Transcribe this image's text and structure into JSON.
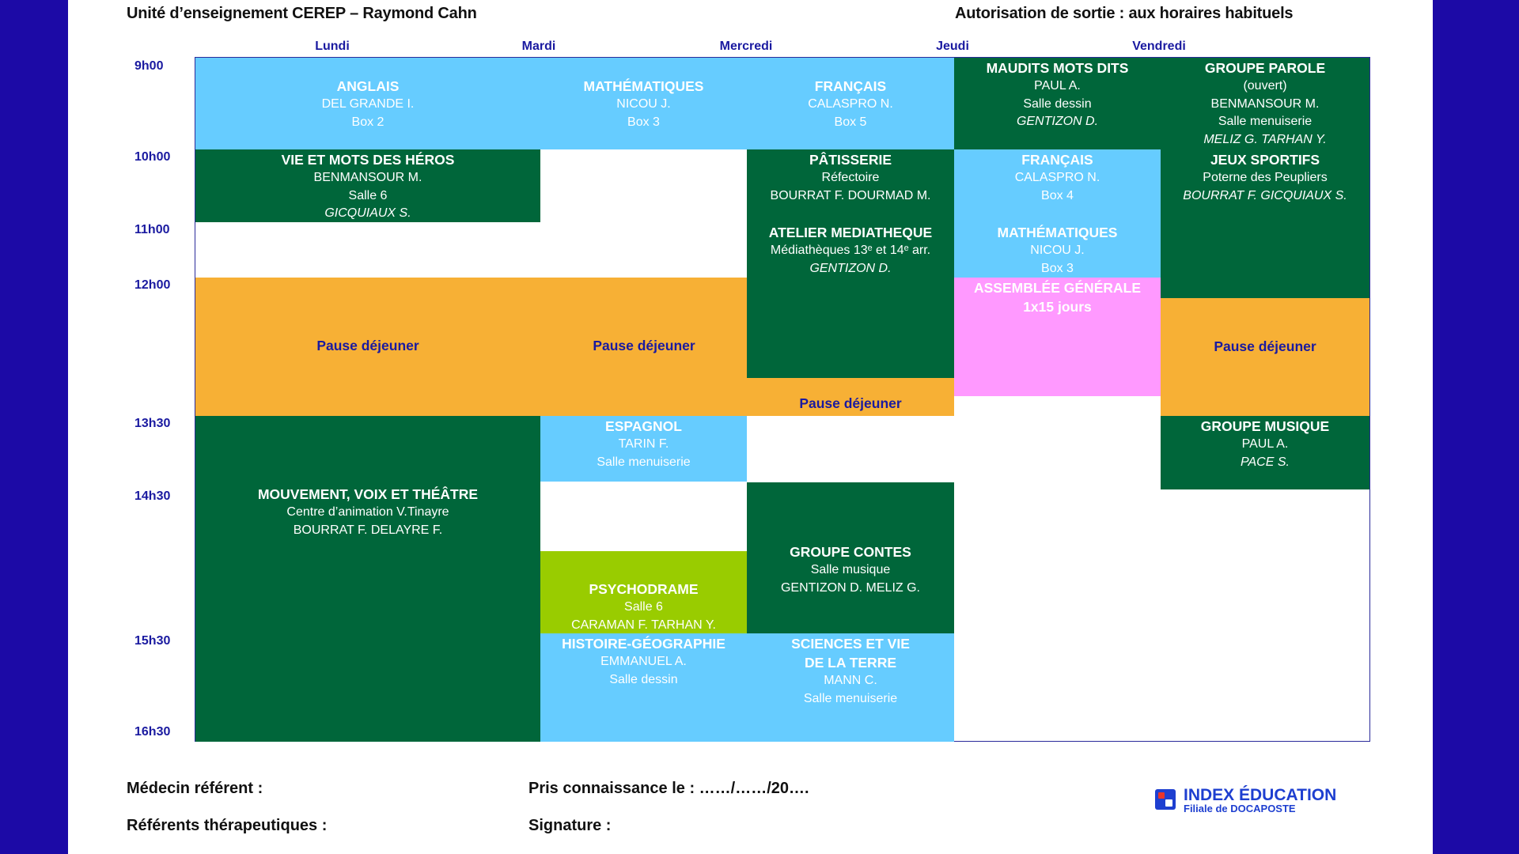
{
  "header": {
    "unit": "Unité d’enseignement CEREP – Raymond Cahn",
    "exit_authorization": "Autorisation de sortie : aux horaires habituels"
  },
  "days": [
    "Lundi",
    "Mardi",
    "Mercredi",
    "Jeudi",
    "Vendredi"
  ],
  "times": [
    "9h00",
    "10h00",
    "11h00",
    "12h00",
    "13h30",
    "14h30",
    "15h30",
    "16h30"
  ],
  "schedule": {
    "lundi": [
      {
        "lines": [
          "ANGLAIS",
          "DEL GRANDE I.",
          "Box 2"
        ],
        "color": "#66ccff"
      },
      {
        "lines": [
          "VIE ET MOTS DES HÉROS",
          "BENMANSOUR M.",
          "Salle 6",
          "GICQUIAUX S."
        ],
        "color": "#00663a"
      },
      {
        "lines": [
          "Pause déjeuner"
        ],
        "color": "#f7b035"
      },
      {
        "lines": [
          "MOUVEMENT, VOIX ET THÉÂTRE",
          "Centre d’animation V.Tinayre",
          "BOURRAT F. DELAYRE F."
        ],
        "color": "#00663a"
      }
    ],
    "mardi": [
      {
        "lines": [
          "MATHÉMATIQUES",
          "NICOU J.",
          "Box 3"
        ],
        "color": "#66ccff"
      },
      {
        "lines": [
          "Pause déjeuner"
        ],
        "color": "#f7b035"
      },
      {
        "lines": [
          "ESPAGNOL",
          "TARIN F.",
          "Salle menuiserie"
        ],
        "color": "#66ccff"
      },
      {
        "lines": [
          "PSYCHODRAME",
          "Salle 6",
          "CARAMAN F. TARHAN Y."
        ],
        "color": "#99cc00"
      },
      {
        "lines": [
          "HISTOIRE-GÉOGRAPHIE",
          "EMMANUEL A.",
          "Salle dessin"
        ],
        "color": "#66ccff"
      }
    ],
    "mercredi": [
      {
        "lines": [
          "FRANÇAIS",
          "CALASPRO N.",
          "Box 5"
        ],
        "color": "#66ccff"
      },
      {
        "lines": [
          "PÂTISSERIE",
          "Réfectoire",
          "BOURRAT F. DOURMAD M."
        ],
        "color": "#00663a"
      },
      {
        "lines": [
          "ATELIER MEDIATHEQUE",
          "Médiathèques 13ᵉ et 14ᵉ arr.",
          "GENTIZON D."
        ],
        "color": "#00663a"
      },
      {
        "lines": [
          "Pause déjeuner"
        ],
        "color": "#f7b035"
      },
      {
        "lines": [
          "GROUPE CONTES",
          "Salle musique",
          "GENTIZON D. MELIZ G."
        ],
        "color": "#00663a"
      },
      {
        "lines": [
          "SCIENCES ET VIE",
          "DE LA TERRE",
          "MANN C.",
          "Salle menuiserie"
        ],
        "color": "#66ccff"
      }
    ],
    "jeudi": [
      {
        "lines": [
          "MAUDITS MOTS DITS",
          "PAUL A.",
          "Salle dessin",
          "GENTIZON D."
        ],
        "color": "#00663a"
      },
      {
        "lines": [
          "FRANÇAIS",
          "CALASPRO N.",
          "Box 4"
        ],
        "color": "#66ccff"
      },
      {
        "lines": [
          "MATHÉMATIQUES",
          "NICOU J.",
          "Box 3"
        ],
        "color": "#66ccff"
      },
      {
        "lines": [
          "ASSEMBLÉE GÉNÉRALE",
          "1x15 jours"
        ],
        "color": "#ff99ff"
      }
    ],
    "vendredi": [
      {
        "lines": [
          "GROUPE PAROLE",
          "(ouvert)",
          "BENMANSOUR M.",
          "Salle menuiserie",
          "MELIZ G. TARHAN Y."
        ],
        "color": "#00663a"
      },
      {
        "lines": [
          "JEUX SPORTIFS",
          "Poterne des Peupliers",
          "BOURRAT F. GICQUIAUX S."
        ],
        "color": "#00663a"
      },
      {
        "lines": [
          "Pause déjeuner"
        ],
        "color": "#f7b035"
      },
      {
        "lines": [
          "GROUPE MUSIQUE",
          "PAUL A.",
          "PACE S."
        ],
        "color": "#00663a"
      }
    ]
  },
  "footer": {
    "doctor": "Médecin référent :",
    "acknowledged": "Pris connaissance le : ……/……/20….",
    "therapists": "Référents thérapeutiques :",
    "signature": "Signature :"
  },
  "logo": {
    "name": "INDEX ÉDUCATION",
    "subtitle": "Filiale de DOCAPOSTE"
  }
}
